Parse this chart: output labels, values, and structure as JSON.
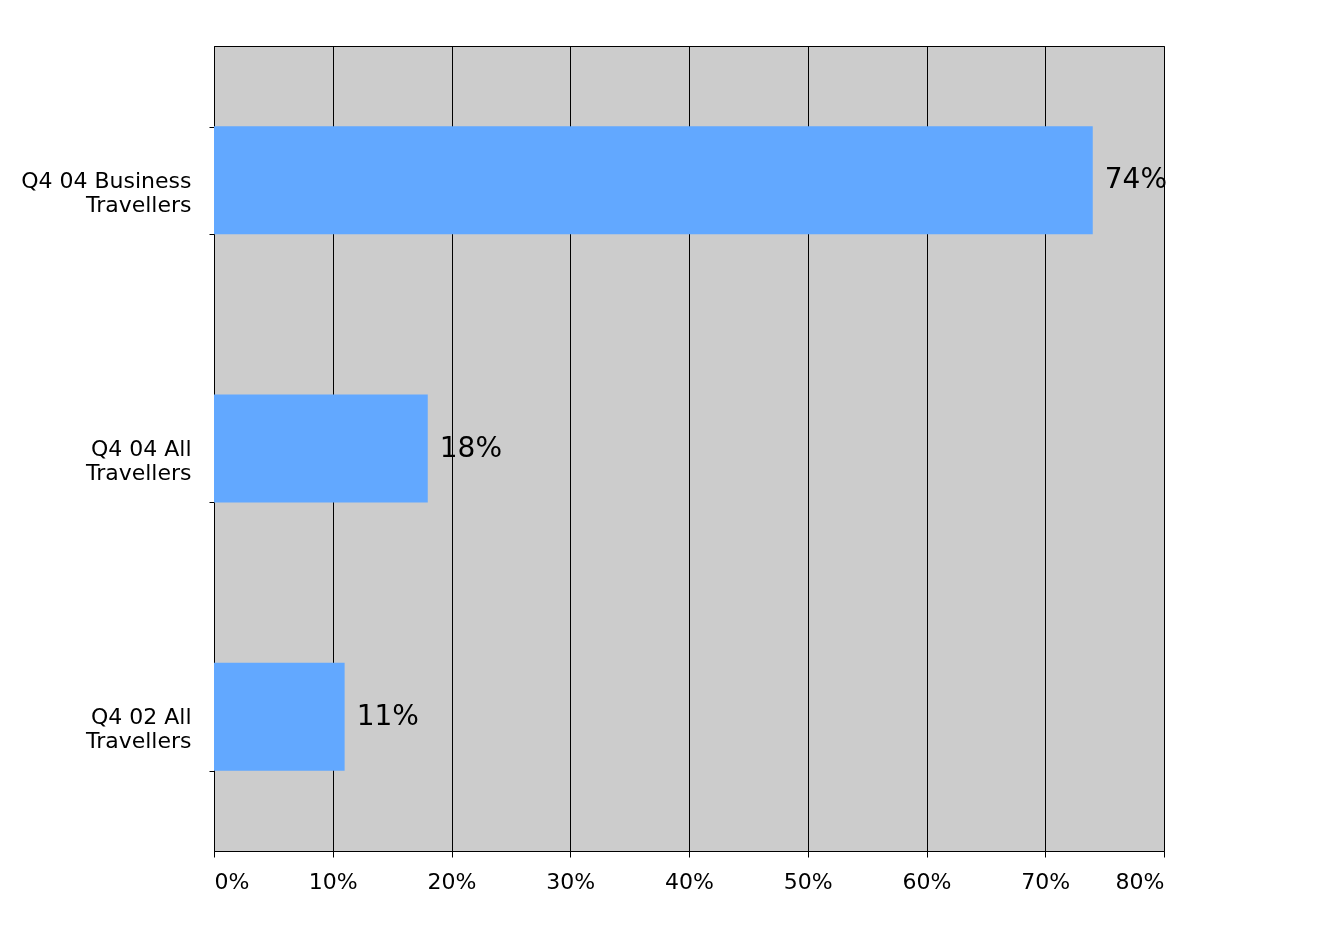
{
  "chart_data": {
    "type": "bar",
    "orientation": "horizontal",
    "categories": [
      "Q4 04 Business Travellers",
      "Q4 04 All Travellers",
      "Q4 02 All Travellers"
    ],
    "values": [
      74,
      18,
      11
    ],
    "color": "#62a8ff",
    "value_labels": [
      "74%",
      "18%",
      "11%"
    ],
    "xlim": [
      0,
      80
    ],
    "xticks": [
      {
        "value": 0,
        "label": "0%"
      },
      {
        "value": 10,
        "label": "10%"
      },
      {
        "value": 20,
        "label": "20%"
      },
      {
        "value": 30,
        "label": "30%"
      },
      {
        "value": 40,
        "label": "40%"
      },
      {
        "value": 50,
        "label": "50%"
      },
      {
        "value": 60,
        "label": "60%"
      },
      {
        "value": 70,
        "label": "70%"
      },
      {
        "value": 80,
        "label": "80%"
      }
    ],
    "grid": "x"
  }
}
